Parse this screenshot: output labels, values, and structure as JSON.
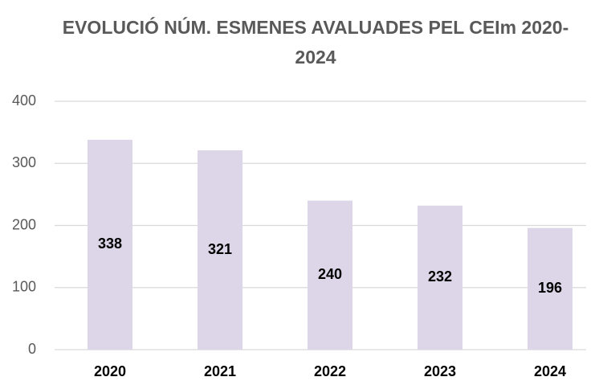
{
  "chart_data": {
    "type": "bar",
    "title": "EVOLUCIÓ NÚM. ESMENES AVALUADES PEL CEIm 2020-2024",
    "categories": [
      "2020",
      "2021",
      "2022",
      "2023",
      "2024"
    ],
    "values": [
      338,
      321,
      240,
      232,
      196
    ],
    "color": "#ddd5e8",
    "ylim": [
      0,
      400
    ],
    "yticks": [
      0,
      100,
      200,
      300,
      400
    ],
    "grid": true
  }
}
